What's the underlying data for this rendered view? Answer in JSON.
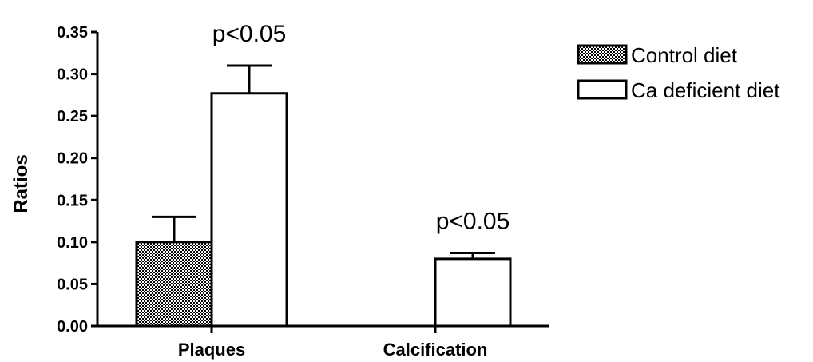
{
  "chart_data": {
    "type": "bar",
    "title": "",
    "xlabel": "",
    "ylabel": "Ratios",
    "ylim": [
      0,
      0.35
    ],
    "yticks": [
      "0.00",
      "0.05",
      "0.10",
      "0.15",
      "0.20",
      "0.25",
      "0.30",
      "0.35"
    ],
    "categories": [
      "Plaques",
      "Calcification"
    ],
    "series": [
      {
        "name": "Control diet",
        "values": [
          0.1,
          0.0
        ],
        "errors": [
          0.03,
          0.0
        ],
        "fill": "pattern-checker"
      },
      {
        "name": "Ca deficient diet",
        "values": [
          0.277,
          0.08
        ],
        "errors": [
          0.033,
          0.007
        ],
        "fill": "#ffffff"
      }
    ],
    "annotations": [
      {
        "text": "p<0.05",
        "category": "Plaques"
      },
      {
        "text": "p<0.05",
        "category": "Calcification"
      }
    ],
    "legend": {
      "placement": "top-right"
    },
    "grid": false,
    "colors": {
      "stroke": "#000000",
      "background": "#ffffff",
      "pattern_dark": "#000000",
      "pattern_light": "#ffffff"
    }
  }
}
